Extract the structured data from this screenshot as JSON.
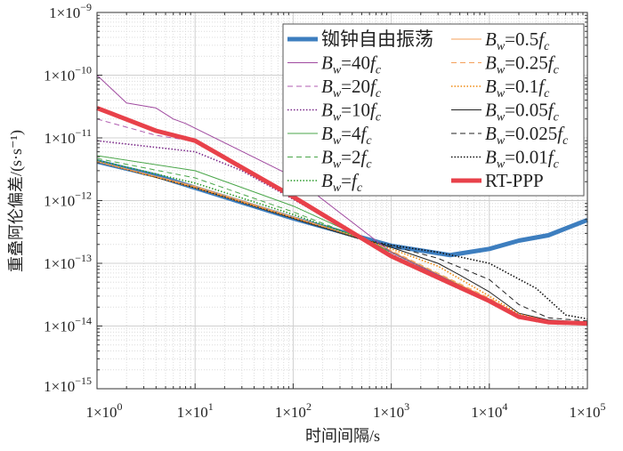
{
  "chart_data": {
    "type": "line",
    "xscale": "log",
    "yscale": "log",
    "xlabel": "时间间隔/s",
    "ylabel": "重叠阿伦偏差/(s·s⁻¹)",
    "xlim": [
      1,
      100000
    ],
    "ylim": [
      1e-15,
      1e-09
    ],
    "xticks": [
      {
        "base": "1×10",
        "exp": "0"
      },
      {
        "base": "1×10",
        "exp": "1"
      },
      {
        "base": "1×10",
        "exp": "2"
      },
      {
        "base": "1×10",
        "exp": "3"
      },
      {
        "base": "1×10",
        "exp": "4"
      },
      {
        "base": "1×10",
        "exp": "5"
      }
    ],
    "yticks": [
      {
        "base": "1×10",
        "exp": "−15"
      },
      {
        "base": "1×10",
        "exp": "−14"
      },
      {
        "base": "1×10",
        "exp": "−13"
      },
      {
        "base": "1×10",
        "exp": "−12"
      },
      {
        "base": "1×10",
        "exp": "−11"
      },
      {
        "base": "1×10",
        "exp": "−10"
      },
      {
        "base": "1×10",
        "exp": "−9"
      }
    ],
    "grid": true,
    "legend_position": "top-right",
    "series": [
      {
        "name": "铷钟自由振荡",
        "color": "#3d7ebf",
        "width": 5,
        "dash": "",
        "x": [
          1,
          4,
          10,
          100,
          1000,
          4000,
          10000,
          20000,
          40000,
          100000
        ],
        "y": [
          4.2e-12,
          2.5e-12,
          1.6e-12,
          5.2e-13,
          1.9e-13,
          1.35e-13,
          1.7e-13,
          2.3e-13,
          2.8e-13,
          4.9e-13
        ]
      },
      {
        "name": "B_w=40f_c",
        "color": "#a04aa0",
        "width": 1,
        "dash": "",
        "x": [
          1,
          2,
          4,
          6,
          8,
          100,
          1000,
          10000,
          20000,
          40000,
          100000
        ],
        "y": [
          1e-10,
          3.6e-11,
          3e-11,
          2e-11,
          1.7e-11,
          2.4e-12,
          1.5e-13,
          2.6e-14,
          1.4e-14,
          1.15e-14,
          1.1e-14
        ]
      },
      {
        "name": "B_w=20f_c",
        "color": "#b05cb0",
        "width": 1,
        "dash": "6,4",
        "x": [
          1,
          4,
          10,
          100,
          1000,
          10000,
          20000,
          40000,
          100000
        ],
        "y": [
          2e-11,
          1.1e-11,
          8.8e-12,
          1.1e-12,
          1.35e-13,
          2.5e-14,
          1.4e-14,
          1.15e-14,
          1.1e-14
        ]
      },
      {
        "name": "B_w=10f_c",
        "color": "#7b2a8a",
        "width": 1.6,
        "dash": "1.5,2",
        "x": [
          1,
          10,
          30,
          100,
          1000,
          10000,
          20000,
          40000,
          100000
        ],
        "y": [
          9e-12,
          6e-12,
          3e-12,
          1.05e-12,
          1.4e-13,
          2.5e-14,
          1.4e-14,
          1.15e-14,
          1.1e-14
        ]
      },
      {
        "name": "B_w=4f_c",
        "color": "#4aa64a",
        "width": 1,
        "dash": "",
        "x": [
          1,
          10,
          100,
          500,
          1000,
          10000,
          20000,
          40000,
          100000
        ],
        "y": [
          5.2e-12,
          3e-12,
          8.2e-13,
          2.6e-13,
          1.5e-13,
          2.6e-14,
          1.45e-14,
          1.15e-14,
          1.1e-14
        ]
      },
      {
        "name": "B_w=2f_c",
        "color": "#4aa64a",
        "width": 1,
        "dash": "6,4",
        "x": [
          1,
          10,
          100,
          500,
          1000,
          10000,
          20000,
          40000,
          100000
        ],
        "y": [
          4.7e-12,
          2.3e-12,
          6.6e-13,
          2.5e-13,
          1.5e-13,
          2.6e-14,
          1.45e-14,
          1.15e-14,
          1.1e-14
        ]
      },
      {
        "name": "B_w=f_c",
        "color": "#2a9a2a",
        "width": 1.6,
        "dash": "1.5,2",
        "x": [
          1,
          10,
          100,
          500,
          1000,
          10000,
          20000,
          40000,
          100000
        ],
        "y": [
          4.4e-12,
          1.9e-12,
          6e-13,
          2.5e-13,
          1.5e-13,
          2.6e-14,
          1.45e-14,
          1.15e-14,
          1.1e-14
        ]
      },
      {
        "name": "B_w=0.5f_c",
        "color": "#f4a05a",
        "width": 1,
        "dash": "",
        "x": [
          1,
          10,
          100,
          500,
          1000,
          10000,
          20000,
          40000,
          100000
        ],
        "y": [
          4.2e-12,
          1.7e-12,
          5.5e-13,
          2.5e-13,
          1.55e-13,
          2.7e-14,
          1.5e-14,
          1.2e-14,
          1.1e-14
        ]
      },
      {
        "name": "B_w=0.25f_c",
        "color": "#f4a05a",
        "width": 1,
        "dash": "6,4",
        "x": [
          1,
          10,
          100,
          500,
          1000,
          10000,
          20000,
          40000,
          100000
        ],
        "y": [
          4.2e-12,
          1.65e-12,
          5.4e-13,
          2.5e-13,
          1.6e-13,
          2.8e-14,
          1.5e-14,
          1.2e-14,
          1.1e-14
        ]
      },
      {
        "name": "B_w=0.1f_c",
        "color": "#f08a10",
        "width": 1.6,
        "dash": "1.5,2",
        "x": [
          1,
          10,
          100,
          500,
          1000,
          3000,
          10000,
          20000,
          40000,
          100000
        ],
        "y": [
          4.2e-12,
          1.6e-12,
          5.3e-13,
          2.5e-13,
          1.7e-13,
          9e-14,
          3e-14,
          1.55e-14,
          1.2e-14,
          1.1e-14
        ]
      },
      {
        "name": "B_w=0.05f_c",
        "color": "#222222",
        "width": 1,
        "dash": "",
        "x": [
          1,
          10,
          100,
          500,
          1000,
          3000,
          5000,
          10000,
          20000,
          40000,
          100000
        ],
        "y": [
          4.2e-12,
          1.6e-12,
          5.2e-13,
          2.4e-13,
          1.8e-13,
          1e-13,
          6.5e-14,
          3.5e-14,
          1.6e-14,
          1.25e-14,
          1.15e-14
        ]
      },
      {
        "name": "B_w=0.025f_c",
        "color": "#222222",
        "width": 1,
        "dash": "6,4",
        "x": [
          1,
          10,
          100,
          500,
          1000,
          3000,
          10000,
          20000,
          40000,
          100000
        ],
        "y": [
          4.2e-12,
          1.6e-12,
          5.2e-13,
          2.4e-13,
          1.9e-13,
          1.2e-13,
          5.5e-14,
          2.2e-14,
          1.35e-14,
          1.2e-14
        ]
      },
      {
        "name": "B_w=0.01f_c",
        "color": "#111111",
        "width": 1.6,
        "dash": "1.5,2",
        "x": [
          1,
          10,
          100,
          500,
          1000,
          3000,
          10000,
          30000,
          60000,
          100000
        ],
        "y": [
          4.2e-12,
          1.6e-12,
          5.2e-13,
          2.4e-13,
          1.95e-13,
          1.5e-13,
          1e-13,
          4e-14,
          1.5e-14,
          1.3e-14
        ]
      },
      {
        "name": "RT-PPP",
        "color": "#e8414a",
        "width": 5,
        "dash": "",
        "x": [
          1,
          4,
          10,
          100,
          1000,
          10000,
          20000,
          40000,
          100000
        ],
        "y": [
          3e-11,
          1.3e-11,
          9e-12,
          1.15e-12,
          1.3e-13,
          2.5e-14,
          1.4e-14,
          1.15e-14,
          1.1e-14
        ]
      }
    ]
  }
}
